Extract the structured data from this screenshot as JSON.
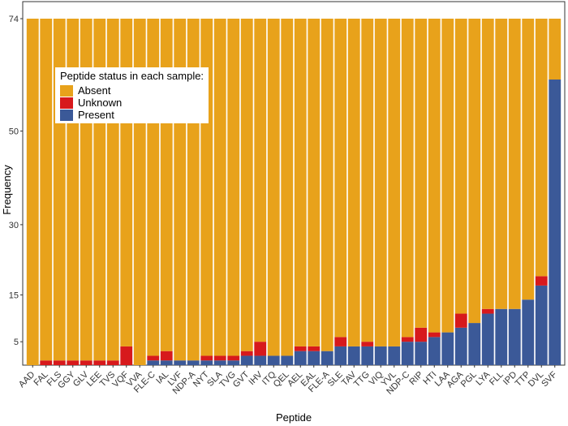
{
  "chart_data": {
    "type": "bar",
    "stacked": true,
    "title": "",
    "xlabel": "Peptide",
    "ylabel": "Frequency",
    "ylim": [
      0,
      74
    ],
    "yticks": [
      5,
      15,
      30,
      50,
      74
    ],
    "grid": false,
    "legend": {
      "title": "Peptide status in each sample:",
      "placement": "top-left",
      "entries": [
        "Absent",
        "Unknown",
        "Present"
      ]
    },
    "colors": {
      "Absent": "#E8A21B",
      "Unknown": "#D7191C",
      "Present": "#3B5998"
    },
    "categories": [
      "AAD",
      "FAL",
      "FLS",
      "GGY",
      "GLV",
      "LEE",
      "TVS",
      "VQF",
      "VVA",
      "FLE-C",
      "IAL",
      "LVF",
      "NDP-A",
      "NYT",
      "SLA",
      "TVG",
      "GVT",
      "IHV",
      "ITQ",
      "QEL",
      "AEL",
      "EAL",
      "FLE-A",
      "SLE",
      "TAV",
      "TTG",
      "VIQ",
      "YVL",
      "NDP-C",
      "RIP",
      "HTI",
      "LAA",
      "AGA",
      "PGL",
      "LYA",
      "FLL",
      "IPD",
      "TTP",
      "DVL",
      "SVF"
    ],
    "series": [
      {
        "name": "Present",
        "values": [
          0,
          0,
          0,
          0,
          0,
          0,
          0,
          0,
          0,
          1,
          1,
          1,
          1,
          1,
          1,
          1,
          2,
          2,
          2,
          2,
          3,
          3,
          3,
          4,
          4,
          4,
          4,
          4,
          5,
          5,
          6,
          7,
          8,
          9,
          11,
          12,
          12,
          14,
          17,
          61
        ]
      },
      {
        "name": "Unknown",
        "values": [
          0,
          1,
          1,
          1,
          1,
          1,
          1,
          4,
          0,
          1,
          2,
          0,
          0,
          1,
          1,
          1,
          1,
          3,
          0,
          0,
          1,
          1,
          0,
          2,
          0,
          1,
          0,
          0,
          1,
          3,
          1,
          0,
          3,
          0,
          1,
          0,
          0,
          0,
          2,
          0
        ]
      },
      {
        "name": "Absent",
        "values": [
          74,
          73,
          73,
          73,
          73,
          73,
          73,
          70,
          74,
          72,
          71,
          73,
          73,
          72,
          72,
          72,
          71,
          69,
          72,
          72,
          70,
          70,
          71,
          68,
          70,
          69,
          70,
          70,
          68,
          66,
          67,
          67,
          63,
          65,
          62,
          62,
          62,
          60,
          55,
          13
        ]
      }
    ]
  }
}
